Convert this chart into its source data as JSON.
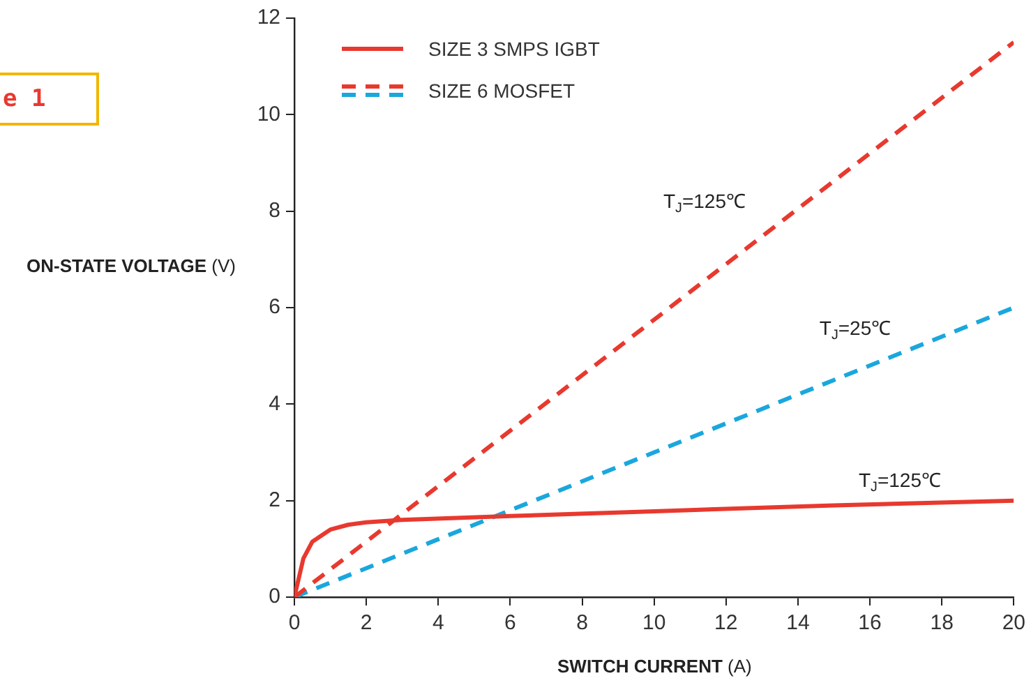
{
  "chart_data": {
    "type": "line",
    "xlabel": "SWITCH CURRENT (A)",
    "ylabel": "ON-STATE VOLTAGE (V)",
    "xlim": [
      0,
      20
    ],
    "xticks": [
      0,
      2,
      4,
      6,
      8,
      10,
      12,
      14,
      16,
      18,
      20
    ],
    "ylim": [
      0,
      12
    ],
    "yticks": [
      0,
      2,
      4,
      6,
      8,
      10,
      12
    ],
    "grid": false,
    "legend": "top left",
    "marker": "none",
    "series": [
      {
        "name": "SIZE 3 SMPS IGBT",
        "color": "#e8392f",
        "line_style": "solid",
        "x": [
          0,
          0.25,
          0.5,
          1,
          1.5,
          2,
          3,
          6,
          10,
          15,
          20
        ],
        "values": [
          0,
          0.8,
          1.15,
          1.4,
          1.5,
          1.55,
          1.6,
          1.68,
          1.78,
          1.9,
          2.0
        ]
      },
      {
        "name": "SIZE 6 MOSFET",
        "color": "#e8392f",
        "line_style": "dashed",
        "x": [
          0,
          10,
          20
        ],
        "values": [
          0,
          5.75,
          11.5
        ]
      },
      {
        "color": "#1aa7dd",
        "line_style": "dashed",
        "x": [
          0,
          10,
          20
        ],
        "values": [
          0,
          3,
          6
        ]
      }
    ],
    "annotations": [
      "T$_{J}$=125℃",
      "T$_{J}$=25℃",
      "T$_{J}$=125℃",
      "e 1"
    ]
  }
}
